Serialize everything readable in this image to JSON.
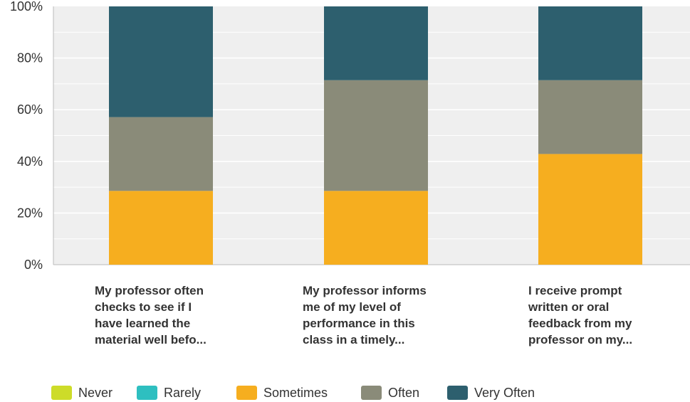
{
  "chart_data": {
    "type": "bar",
    "stacked": true,
    "categories": [
      [
        "My professor often",
        "checks to see if I",
        "have learned the",
        "material well befo..."
      ],
      [
        "My professor informs",
        "me of my level of",
        "performance in this",
        "class in a timely..."
      ],
      [
        "I receive prompt",
        "written or oral",
        "feedback from my",
        "professor on my..."
      ]
    ],
    "series": [
      {
        "name": "Never",
        "color": "#cddc29",
        "values": [
          0,
          0,
          0
        ]
      },
      {
        "name": "Rarely",
        "color": "#2ebfc0",
        "values": [
          0,
          0,
          0
        ]
      },
      {
        "name": "Sometimes",
        "color": "#f6ae1f",
        "values": [
          28.57,
          28.57,
          42.86
        ]
      },
      {
        "name": "Often",
        "color": "#8a8b79",
        "values": [
          28.57,
          42.86,
          28.57
        ]
      },
      {
        "name": "Very Often",
        "color": "#2d5f6e",
        "values": [
          42.86,
          28.57,
          28.57
        ]
      }
    ],
    "y_ticks": [
      "0%",
      "20%",
      "40%",
      "60%",
      "80%",
      "100%"
    ],
    "ylim": [
      0,
      100
    ],
    "grid": true,
    "legend_position": "bottom"
  }
}
